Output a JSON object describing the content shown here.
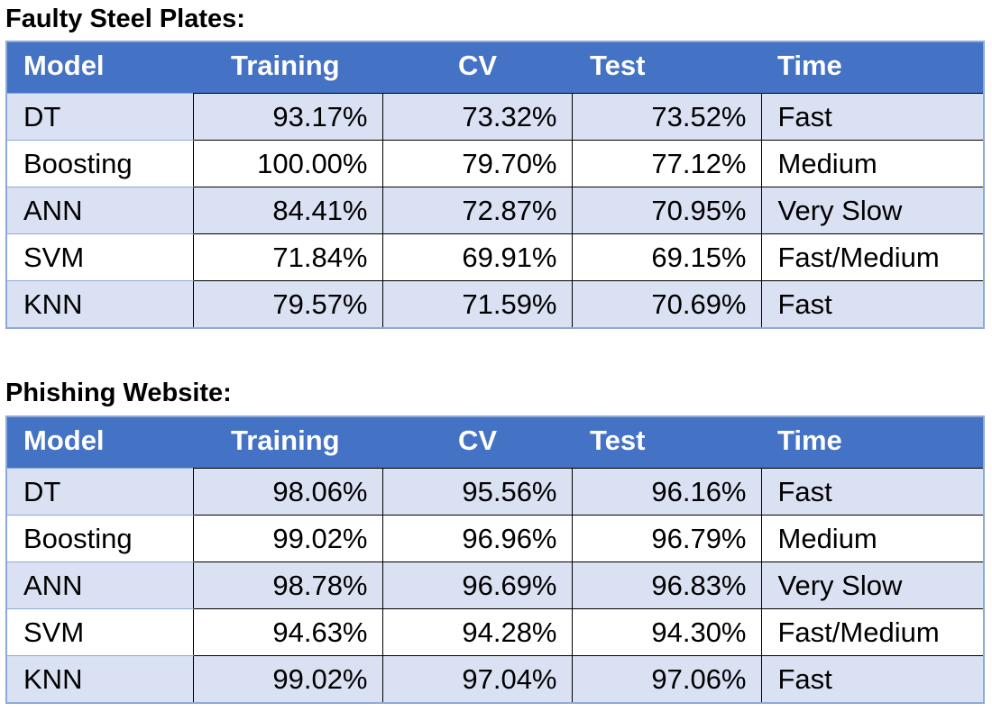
{
  "tables": [
    {
      "title": "Faulty Steel Plates:",
      "headers": [
        "Model",
        "Training",
        "CV",
        "Test",
        "Time"
      ],
      "rows": [
        [
          "DT",
          "93.17%",
          "73.32%",
          "73.52%",
          "Fast"
        ],
        [
          "Boosting",
          "100.00%",
          "79.70%",
          "77.12%",
          "Medium"
        ],
        [
          "ANN",
          "84.41%",
          "72.87%",
          "70.95%",
          "Very Slow"
        ],
        [
          "SVM",
          "71.84%",
          "69.91%",
          "69.15%",
          "Fast/Medium"
        ],
        [
          "KNN",
          "79.57%",
          "71.59%",
          "70.69%",
          "Fast"
        ]
      ]
    },
    {
      "title": "Phishing Website:",
      "headers": [
        "Model",
        "Training",
        "CV",
        "Test",
        "Time"
      ],
      "rows": [
        [
          "DT",
          "98.06%",
          "95.56%",
          "96.16%",
          "Fast"
        ],
        [
          "Boosting",
          "99.02%",
          "96.96%",
          "96.79%",
          "Medium"
        ],
        [
          "ANN",
          "98.78%",
          "96.69%",
          "96.83%",
          "Very Slow"
        ],
        [
          "SVM",
          "94.63%",
          "94.28%",
          "94.30%",
          "Fast/Medium"
        ],
        [
          "KNN",
          "99.02%",
          "97.04%",
          "97.06%",
          "Fast"
        ]
      ]
    }
  ],
  "colors": {
    "header_bg": "#4472c4",
    "band_bg": "#d9e1f2",
    "border_light": "#8eaadb"
  }
}
